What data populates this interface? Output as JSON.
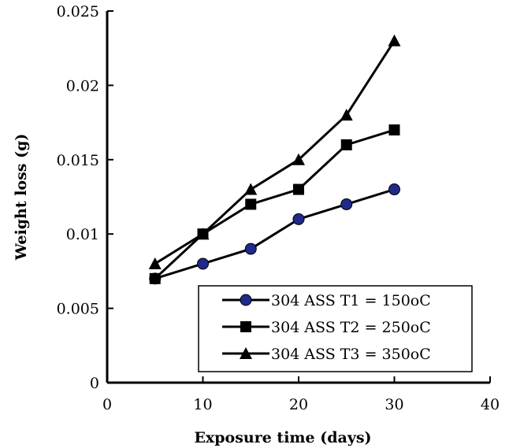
{
  "chart_data": {
    "type": "line",
    "xlabel": "Exposure time (days)",
    "ylabel": "Weight loss (g)",
    "xlim": [
      0,
      40
    ],
    "ylim": [
      0,
      0.025
    ],
    "xticks": [
      0,
      10,
      20,
      30,
      40
    ],
    "yticks": [
      0,
      0.005,
      0.01,
      0.015,
      0.02,
      0.025
    ],
    "xtick_labels": [
      "0",
      "10",
      "20",
      "30",
      "40"
    ],
    "ytick_labels": [
      "0",
      "0.005",
      "0.01",
      "0.015",
      "0.02",
      "0.025"
    ],
    "grid": false,
    "legend_position": "bottom-right",
    "x": [
      5,
      10,
      15,
      20,
      25,
      30
    ],
    "series": [
      {
        "name": "304 ASS T1 = 150oC",
        "marker": "circle",
        "color": "#000000",
        "marker_color": "#1f2a8a",
        "values": [
          0.007,
          0.008,
          0.009,
          0.011,
          0.012,
          0.013
        ]
      },
      {
        "name": "304 ASS T2 = 250oC",
        "marker": "square",
        "color": "#000000",
        "marker_color": "#000000",
        "values": [
          0.007,
          0.01,
          0.012,
          0.013,
          0.016,
          0.017
        ]
      },
      {
        "name": "304 ASS T3 = 350oC",
        "marker": "triangle",
        "color": "#000000",
        "marker_color": "#000000",
        "values": [
          0.008,
          0.01,
          0.013,
          0.015,
          0.018,
          0.023
        ]
      }
    ]
  }
}
